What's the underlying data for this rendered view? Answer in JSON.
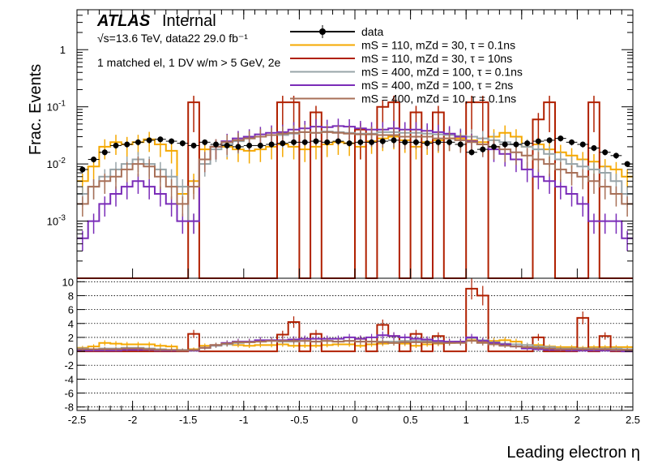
{
  "chart_data": {
    "type": "step-histogram-with-ratio",
    "atlas_label": "ATLAS",
    "atlas_sublabel": "Internal",
    "annotation_lines": [
      "√s=13.6 TeV, data22 29.0 fb⁻¹",
      "1 matched el, 1 DV w/m > 5 GeV, 2e"
    ],
    "xlabel": "Leading electron η",
    "ylabel": "Frac. Events",
    "xlim": [
      -2.5,
      2.5
    ],
    "ylim_log": [
      0.0001,
      5
    ],
    "ylim_ratio": [
      -8.5,
      10.5
    ],
    "x_ticks": [
      "-2.5",
      "-2",
      "-1.5",
      "-1",
      "-0.5",
      "0",
      "0.5",
      "1",
      "1.5",
      "2",
      "2.5"
    ],
    "x_tick_values": [
      -2.5,
      -2,
      -1.5,
      -1,
      -0.5,
      0,
      0.5,
      1,
      1.5,
      2,
      2.5
    ],
    "y_ticks": [
      {
        "value": 0.001,
        "label": "10",
        "exp": "-3"
      },
      {
        "value": 0.01,
        "label": "10",
        "exp": "-2"
      },
      {
        "value": 0.1,
        "label": "10",
        "exp": "-1"
      },
      {
        "value": 1,
        "label": "1",
        "exp": ""
      }
    ],
    "ratio_ticks": [
      "-8",
      "-6",
      "-4",
      "-2",
      "0",
      "2",
      "4",
      "6",
      "8",
      "10"
    ],
    "ratio_tick_values": [
      -8,
      -6,
      -4,
      -2,
      0,
      2,
      4,
      6,
      8,
      10
    ],
    "legend": [
      {
        "label": "data",
        "color": "#000000",
        "style": "marker"
      },
      {
        "label": "mS = 110, mZd = 30, τ = 0.1ns",
        "color": "#f5a800",
        "style": "line"
      },
      {
        "label": "mS = 110, mZd = 30, τ = 10ns",
        "color": "#b02000",
        "style": "line"
      },
      {
        "label": "mS = 400, mZd = 100, τ = 0.1ns",
        "color": "#98a4a8",
        "style": "line"
      },
      {
        "label": "mS = 400, mZd = 100, τ = 2ns",
        "color": "#7a2cb8",
        "style": "line"
      },
      {
        "label": "mS = 400, mZd = 10, τ = 0.1ns",
        "color": "#a87058",
        "style": "line"
      }
    ],
    "bin_edges": [
      -2.5,
      2.5
    ],
    "n_bins": 50,
    "data": {
      "name": "data",
      "values": [
        0.008,
        0.012,
        0.016,
        0.021,
        0.022,
        0.024,
        0.026,
        0.027,
        0.025,
        0.023,
        0.021,
        0.024,
        0.022,
        0.021,
        0.02,
        0.021,
        0.021,
        0.022,
        0.023,
        0.024,
        0.024,
        0.025,
        0.024,
        0.025,
        0.023,
        0.024,
        0.024,
        0.025,
        0.026,
        0.024,
        0.024,
        0.023,
        0.024,
        0.024,
        0.022,
        0.016,
        0.018,
        0.02,
        0.022,
        0.022,
        0.023,
        0.025,
        0.026,
        0.028,
        0.024,
        0.022,
        0.019,
        0.016,
        0.014,
        0.01
      ]
    },
    "series": [
      {
        "name": "mS = 110, mZd = 30, τ = 0.1ns",
        "color": "#f5a800",
        "values": [
          0.005,
          0.009,
          0.02,
          0.024,
          0.022,
          0.024,
          0.027,
          0.022,
          0.017,
          0.003,
          0.005,
          0.018,
          0.02,
          0.02,
          0.018,
          0.017,
          0.018,
          0.02,
          0.022,
          0.02,
          0.018,
          0.02,
          0.022,
          0.024,
          0.023,
          0.02,
          0.025,
          0.028,
          0.03,
          0.026,
          0.02,
          0.024,
          0.026,
          0.028,
          0.028,
          0.026,
          0.024,
          0.03,
          0.035,
          0.03,
          0.02,
          0.022,
          0.018,
          0.016,
          0.014,
          0.012,
          0.011,
          0.009,
          0.008,
          0.006
        ],
        "ratio": [
          0.5,
          0.7,
          1.2,
          1.1,
          1.0,
          1.0,
          1.0,
          0.8,
          0.7,
          0.2,
          0.3,
          0.8,
          0.9,
          1.0,
          0.9,
          0.8,
          0.9,
          0.9,
          1.0,
          0.8,
          0.8,
          0.8,
          0.9,
          1.0,
          1.0,
          0.8,
          1.0,
          1.1,
          1.2,
          1.1,
          0.8,
          1.0,
          1.1,
          1.2,
          1.3,
          1.6,
          1.3,
          1.5,
          1.6,
          1.4,
          0.9,
          0.9,
          0.7,
          0.6,
          0.6,
          0.5,
          0.6,
          0.6,
          0.6,
          0.6
        ]
      },
      {
        "name": "mS = 110, mZd = 30, τ = 10ns",
        "color": "#b02000",
        "values": [
          0,
          0,
          0,
          0,
          0,
          0,
          0,
          0,
          0,
          0,
          0.12,
          0,
          0,
          0,
          0,
          0,
          0,
          0,
          0.12,
          0.12,
          0,
          0.08,
          0,
          0,
          0,
          0.04,
          0,
          0.1,
          0.12,
          0,
          0.08,
          0,
          0.08,
          0,
          0,
          0.12,
          0.12,
          0,
          0,
          0,
          0,
          0.06,
          0.12,
          0,
          0,
          0,
          0.12,
          0,
          0,
          0
        ],
        "ratio": [
          0,
          0,
          0,
          0,
          0,
          0,
          0,
          0,
          0,
          0,
          2.5,
          0,
          0,
          0,
          0,
          0,
          0,
          0,
          2.4,
          4.2,
          0,
          2.5,
          0,
          0,
          0,
          1.8,
          0,
          3.8,
          2.2,
          0,
          2.5,
          0,
          2.2,
          0,
          0,
          9.0,
          8.0,
          0,
          0,
          0,
          0,
          2.0,
          0,
          0,
          0,
          4.8,
          0,
          2.2,
          0,
          0
        ]
      },
      {
        "name": "mS = 400, mZd = 100, τ = 0.1ns",
        "color": "#98a4a8",
        "values": [
          0.003,
          0.004,
          0.006,
          0.008,
          0.01,
          0.012,
          0.01,
          0.008,
          0.006,
          0.004,
          0.001,
          0.01,
          0.018,
          0.022,
          0.025,
          0.028,
          0.03,
          0.032,
          0.032,
          0.034,
          0.036,
          0.035,
          0.037,
          0.036,
          0.035,
          0.034,
          0.034,
          0.036,
          0.036,
          0.035,
          0.035,
          0.034,
          0.033,
          0.032,
          0.031,
          0.03,
          0.028,
          0.026,
          0.024,
          0.022,
          0.02,
          0.018,
          0.015,
          0.012,
          0.01,
          0.009,
          0.008,
          0.007,
          0.005,
          0.003
        ],
        "ratio": [
          0.4,
          0.3,
          0.4,
          0.4,
          0.5,
          0.5,
          0.4,
          0.3,
          0.2,
          0.2,
          0.1,
          0.5,
          0.8,
          1.0,
          1.2,
          1.3,
          1.4,
          1.5,
          1.4,
          1.4,
          1.5,
          1.4,
          1.5,
          1.4,
          1.5,
          1.4,
          1.4,
          1.4,
          1.4,
          1.5,
          1.5,
          1.5,
          1.4,
          1.3,
          1.4,
          1.9,
          1.6,
          1.3,
          1.1,
          1.0,
          0.9,
          0.7,
          0.6,
          0.4,
          0.4,
          0.4,
          0.4,
          0.4,
          0.4,
          0.3
        ]
      },
      {
        "name": "mS = 400, mZd = 100, τ = 2ns",
        "color": "#7a2cb8",
        "values": [
          0.0005,
          0.001,
          0.002,
          0.003,
          0.004,
          0.005,
          0.004,
          0.003,
          0.002,
          0.001,
          0.001,
          0.012,
          0.02,
          0.025,
          0.028,
          0.03,
          0.033,
          0.035,
          0.036,
          0.04,
          0.042,
          0.045,
          0.044,
          0.046,
          0.045,
          0.042,
          0.04,
          0.04,
          0.042,
          0.04,
          0.04,
          0.038,
          0.036,
          0.034,
          0.03,
          0.025,
          0.022,
          0.018,
          0.015,
          0.012,
          0.008,
          0.006,
          0.005,
          0.004,
          0.003,
          0.002,
          0.001,
          0.001,
          0.001,
          0.0005
        ],
        "ratio": [
          0.1,
          0.1,
          0.1,
          0.1,
          0.2,
          0.2,
          0.2,
          0.1,
          0.1,
          0.1,
          0.1,
          0.5,
          0.9,
          1.2,
          1.4,
          1.4,
          1.6,
          1.6,
          1.6,
          1.7,
          1.8,
          1.8,
          1.8,
          1.8,
          2.0,
          1.8,
          2.0,
          2.3,
          2.2,
          2.0,
          1.8,
          1.7,
          1.5,
          1.4,
          1.4,
          2.0,
          1.5,
          1.2,
          1.0,
          0.7,
          0.4,
          0.3,
          0.2,
          0.2,
          0.1,
          0.1,
          0.1,
          0.1,
          0.1,
          0.0
        ]
      },
      {
        "name": "mS = 400, mZd = 10, τ = 0.1ns",
        "color": "#a87058",
        "values": [
          0.002,
          0.004,
          0.005,
          0.006,
          0.008,
          0.01,
          0.009,
          0.006,
          0.004,
          0.002,
          0.004,
          0.012,
          0.02,
          0.024,
          0.026,
          0.028,
          0.03,
          0.032,
          0.034,
          0.035,
          0.036,
          0.035,
          0.036,
          0.035,
          0.034,
          0.033,
          0.033,
          0.032,
          0.032,
          0.03,
          0.03,
          0.03,
          0.028,
          0.028,
          0.026,
          0.024,
          0.022,
          0.02,
          0.018,
          0.016,
          0.014,
          0.012,
          0.01,
          0.008,
          0.007,
          0.006,
          0.005,
          0.004,
          0.003,
          0.002
        ],
        "ratio": [
          0.3,
          0.3,
          0.3,
          0.3,
          0.4,
          0.4,
          0.3,
          0.2,
          0.2,
          0.1,
          0.2,
          0.5,
          0.9,
          1.1,
          1.3,
          1.3,
          1.4,
          1.5,
          1.5,
          1.5,
          1.5,
          1.4,
          1.5,
          1.4,
          1.5,
          1.4,
          1.4,
          1.3,
          1.2,
          1.3,
          1.3,
          1.3,
          1.2,
          1.2,
          1.2,
          1.5,
          1.2,
          1.0,
          0.8,
          0.7,
          0.6,
          0.5,
          0.4,
          0.3,
          0.3,
          0.3,
          0.3,
          0.3,
          0.2,
          0.2
        ]
      }
    ]
  }
}
